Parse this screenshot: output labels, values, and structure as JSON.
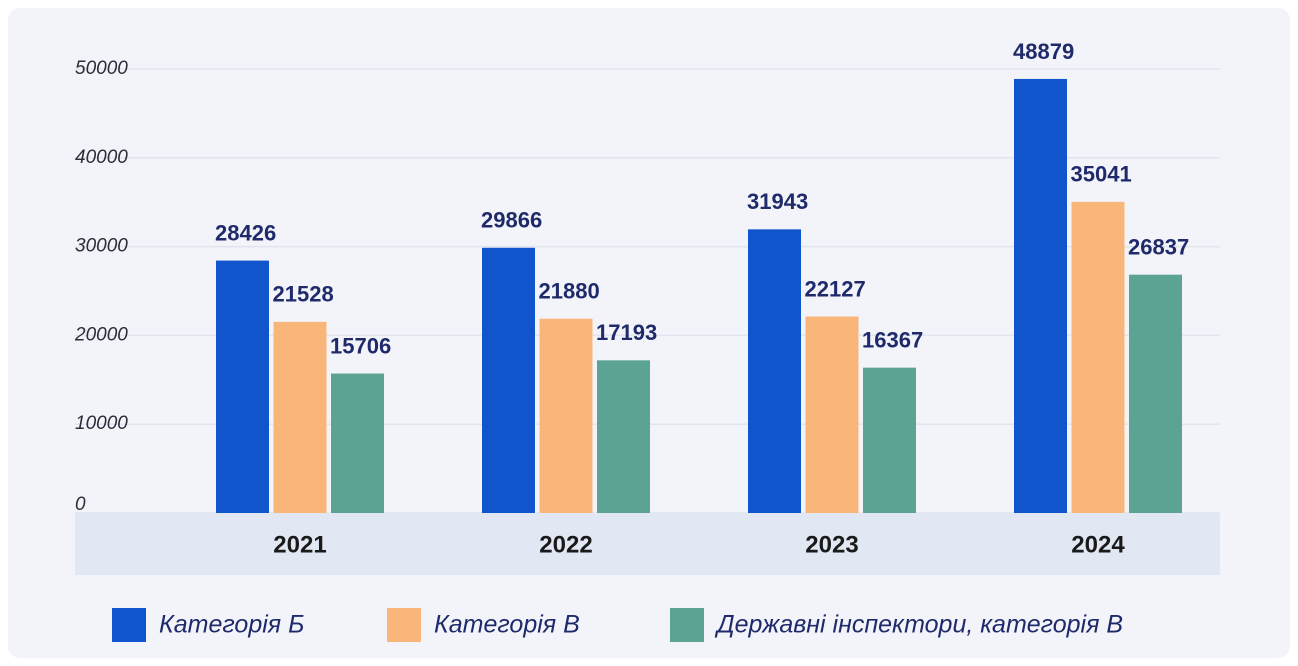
{
  "chart_data": {
    "type": "bar",
    "categories": [
      "2021",
      "2022",
      "2023",
      "2024"
    ],
    "series": [
      {
        "name": "Категорія Б",
        "color": "#1155cc",
        "values": [
          28426,
          29866,
          31943,
          48879
        ]
      },
      {
        "name": "Категорія В",
        "color": "#f9b67b",
        "values": [
          21528,
          21880,
          22127,
          35041
        ]
      },
      {
        "name": "Державні інспектори, категорія В",
        "color": "#5ba393",
        "values": [
          15706,
          17193,
          16367,
          26837
        ]
      }
    ],
    "ylim": [
      0,
      50000
    ],
    "yticks": [
      0,
      10000,
      20000,
      30000,
      40000,
      50000
    ],
    "grid": true
  }
}
